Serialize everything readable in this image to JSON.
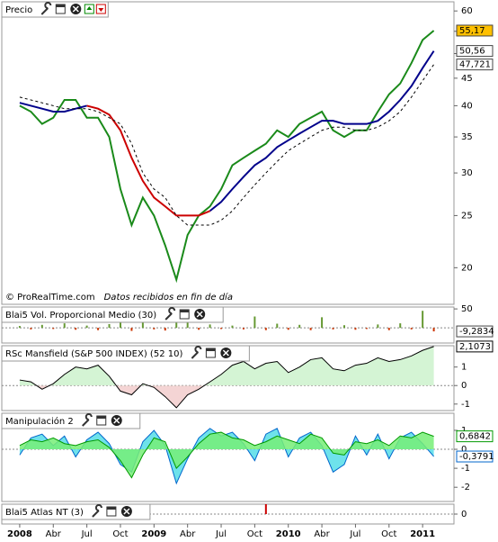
{
  "chart_data": [
    {
      "type": "price",
      "title": "Precio",
      "source": "© ProRealTime.com",
      "note": "Datos recibidos en fin de día",
      "log_scale": true,
      "x": [
        0,
        1,
        2,
        3,
        4,
        5,
        6,
        7,
        8,
        9,
        10,
        11,
        12,
        13,
        14,
        15,
        16,
        17,
        18,
        19,
        20,
        21,
        22,
        23,
        24,
        25,
        26,
        27,
        28,
        29,
        30,
        31,
        32,
        33,
        34,
        35,
        36,
        37
      ],
      "ylim": [
        17.1,
        62.4
      ],
      "yticks": [
        60,
        55,
        50,
        45,
        40,
        35,
        30,
        25,
        20
      ],
      "series": [
        {
          "type": "line",
          "color": "#1a8a1a",
          "label_fill": "#ffc000",
          "values": [
            40,
            39,
            37,
            38,
            41,
            41,
            38,
            38,
            35,
            28,
            24,
            27,
            25,
            22,
            19,
            23,
            25,
            26,
            28,
            31,
            32,
            33,
            34,
            36,
            35,
            37,
            38,
            39,
            36,
            35,
            36,
            36,
            39,
            42,
            44,
            48,
            53,
            55.17
          ],
          "value_labels": [
            null,
            null,
            null,
            null,
            null,
            null,
            null,
            null,
            null,
            null,
            null,
            null,
            null,
            null,
            null,
            null,
            null,
            null,
            null,
            null,
            null,
            null,
            null,
            null,
            null,
            null,
            null,
            null,
            null,
            null,
            null,
            null,
            null,
            null,
            null,
            null,
            null,
            "55,17"
          ]
        },
        {
          "type": "line",
          "color": "#00008b",
          "label_fill": "#ffffff",
          "values": [
            40.5,
            40,
            39.5,
            39,
            39,
            39.5,
            40,
            null,
            null,
            null,
            null,
            null,
            null,
            null,
            null,
            null,
            null,
            25.5,
            26.5,
            28,
            29.5,
            31,
            32,
            33.5,
            34.5,
            35.5,
            36.5,
            37.5,
            37.5,
            37,
            37,
            37,
            37.5,
            39,
            41,
            43.5,
            47,
            50.56
          ],
          "value_labels": [
            null,
            null,
            null,
            null,
            null,
            null,
            null,
            null,
            null,
            null,
            null,
            null,
            null,
            null,
            null,
            null,
            null,
            null,
            null,
            null,
            null,
            null,
            null,
            null,
            null,
            null,
            null,
            null,
            null,
            null,
            null,
            null,
            null,
            null,
            null,
            null,
            null,
            "50,56"
          ]
        },
        {
          "type": "line",
          "color": "#cc0000",
          "values": [
            null,
            null,
            null,
            null,
            null,
            null,
            40,
            39.5,
            38.5,
            36,
            32,
            29,
            27,
            26,
            25,
            25,
            25,
            25.5,
            null,
            null,
            null,
            null,
            null,
            null,
            null,
            null,
            null,
            null,
            null,
            null,
            null,
            null,
            null,
            null,
            null,
            null,
            null,
            null
          ]
        },
        {
          "type": "dashed",
          "color": "#000000",
          "label_fill": "#ffffff",
          "values": [
            41.5,
            41,
            40.5,
            40,
            39.5,
            39.5,
            39.5,
            39,
            38,
            37,
            34,
            30,
            28,
            27,
            25,
            24,
            24,
            24,
            24.5,
            25.5,
            27,
            28.5,
            30,
            31.5,
            33,
            34,
            35,
            36,
            36.5,
            36.5,
            36,
            36,
            36.5,
            37.5,
            39,
            41.5,
            44.5,
            47.721
          ],
          "value_labels": [
            null,
            null,
            null,
            null,
            null,
            null,
            null,
            null,
            null,
            null,
            null,
            null,
            null,
            null,
            null,
            null,
            null,
            null,
            null,
            null,
            null,
            null,
            null,
            null,
            null,
            null,
            null,
            null,
            null,
            null,
            null,
            null,
            null,
            null,
            null,
            null,
            null,
            "47,721"
          ]
        }
      ]
    },
    {
      "type": "indicator",
      "title": "Blai5 Vol. Proporcional Medio (30)",
      "ylim": [
        -40,
        55
      ],
      "yticks": [
        50
      ],
      "series": [
        {
          "type": "bar",
          "color": "#669933",
          "neg_color": "#cc3300",
          "label_fill": "#ffffff",
          "values": [
            5,
            -4,
            8,
            -3,
            12,
            -5,
            6,
            -6,
            10,
            22,
            -8,
            15,
            -4,
            -7,
            18,
            25,
            -5,
            9,
            -3,
            6,
            -4,
            30,
            -6,
            11,
            -5,
            8,
            -6,
            28,
            -4,
            7,
            -5,
            -3,
            9,
            -6,
            12,
            -4,
            45,
            -9.2834
          ],
          "value_labels": [
            null,
            null,
            null,
            null,
            null,
            null,
            null,
            null,
            null,
            null,
            null,
            null,
            null,
            null,
            null,
            null,
            null,
            null,
            null,
            null,
            null,
            null,
            null,
            null,
            null,
            null,
            null,
            null,
            null,
            null,
            null,
            null,
            null,
            null,
            null,
            null,
            null,
            "-9,2834"
          ]
        }
      ]
    },
    {
      "type": "indicator",
      "title": "RSc Mansfield (S&P 500 INDEX) (52 10)",
      "ylim": [
        -1.35,
        2.15
      ],
      "yticks": [
        1,
        0,
        -1
      ],
      "series": [
        {
          "type": "area",
          "color": "#000000",
          "fill": "#ccf2cc",
          "fill_below": "#f2cccc",
          "label_fill": "#ffffff",
          "values": [
            0.3,
            0.2,
            -0.2,
            0.1,
            0.6,
            1.0,
            0.9,
            1.1,
            0.5,
            -0.3,
            -0.5,
            0.1,
            -0.1,
            -0.6,
            -1.2,
            -0.5,
            -0.2,
            0.2,
            0.6,
            1.1,
            1.3,
            0.9,
            1.2,
            1.3,
            0.7,
            1.0,
            1.4,
            1.5,
            0.9,
            0.8,
            1.1,
            1.2,
            1.5,
            1.3,
            1.4,
            1.6,
            1.9,
            2.1073
          ],
          "value_labels": [
            null,
            null,
            null,
            null,
            null,
            null,
            null,
            null,
            null,
            null,
            null,
            null,
            null,
            null,
            null,
            null,
            null,
            null,
            null,
            null,
            null,
            null,
            null,
            null,
            null,
            null,
            null,
            null,
            null,
            null,
            null,
            null,
            null,
            null,
            null,
            null,
            null,
            "2,1073"
          ]
        }
      ]
    },
    {
      "type": "indicator",
      "title": "Manipulación 2",
      "ylim": [
        -2.75,
        1.9
      ],
      "yticks": [
        1,
        0,
        -1,
        -2
      ],
      "series": [
        {
          "type": "area",
          "color": "#0066cc",
          "fill": "#55dde8",
          "label_fill": "#ffffff",
          "values": [
            -0.3,
            0.6,
            0.8,
            0.2,
            0.7,
            -0.4,
            0.5,
            0.9,
            0.3,
            -0.8,
            -1.2,
            0.4,
            1.0,
            0.2,
            -1.8,
            -0.5,
            0.6,
            1.1,
            0.7,
            0.9,
            0.3,
            -0.6,
            0.8,
            1.1,
            -0.4,
            0.6,
            0.9,
            0.2,
            -1.2,
            -0.8,
            0.7,
            -0.3,
            0.8,
            -0.5,
            0.6,
            0.9,
            0.3,
            -0.3791
          ],
          "value_labels": [
            null,
            null,
            null,
            null,
            null,
            null,
            null,
            null,
            null,
            null,
            null,
            null,
            null,
            null,
            null,
            null,
            null,
            null,
            null,
            null,
            null,
            null,
            null,
            null,
            null,
            null,
            null,
            null,
            null,
            null,
            null,
            null,
            null,
            null,
            null,
            null,
            null,
            "-0,3791"
          ]
        },
        {
          "type": "area",
          "color": "#009900",
          "fill": "#77ee77",
          "label_fill": "#ffffff",
          "values": [
            0.2,
            0.5,
            0.4,
            0.6,
            0.3,
            0.2,
            0.4,
            0.5,
            0.1,
            -0.6,
            -1.5,
            -0.3,
            0.6,
            0.4,
            -1.0,
            -0.4,
            0.3,
            0.8,
            0.9,
            0.6,
            0.5,
            0.2,
            0.4,
            0.7,
            0.5,
            0.3,
            0.8,
            0.6,
            -0.2,
            -0.3,
            0.4,
            0.3,
            0.5,
            0.2,
            0.7,
            0.6,
            0.9,
            0.6842
          ],
          "value_labels": [
            null,
            null,
            null,
            null,
            null,
            null,
            null,
            null,
            null,
            null,
            null,
            null,
            null,
            null,
            null,
            null,
            null,
            null,
            null,
            null,
            null,
            null,
            null,
            null,
            null,
            null,
            null,
            null,
            null,
            null,
            null,
            null,
            null,
            null,
            null,
            null,
            null,
            "0,6842"
          ]
        }
      ]
    },
    {
      "type": "indicator",
      "title": "Blai5 Atlas NT (3)",
      "ylim": [
        -1,
        1
      ],
      "yticks": [
        0
      ],
      "xlim": [
        -1.6,
        38.8
      ],
      "xticks": [
        {
          "value": 0,
          "label": "2008"
        },
        {
          "value": 3,
          "label": "Abr"
        },
        {
          "value": 6,
          "label": "Jul"
        },
        {
          "value": 9,
          "label": "Oct"
        },
        {
          "value": 12,
          "label": "2009"
        },
        {
          "value": 15,
          "label": "Abr"
        },
        {
          "value": 18,
          "label": "Jul"
        },
        {
          "value": 21,
          "label": "Oct"
        },
        {
          "value": 24,
          "label": "2010"
        },
        {
          "value": 27,
          "label": "Abr"
        },
        {
          "value": 30,
          "label": "Jul"
        },
        {
          "value": 33,
          "label": "Oct"
        },
        {
          "value": 36,
          "label": "2011"
        }
      ],
      "series": [
        {
          "type": "bar",
          "color": "#cc0000",
          "neg_color": "#cc0000",
          "values": [
            0,
            0,
            0,
            0,
            0,
            0,
            0,
            0,
            0,
            0,
            0,
            0,
            0,
            0,
            0,
            0,
            0,
            0,
            0,
            0,
            0,
            0,
            1,
            0,
            0,
            0,
            0,
            0,
            0,
            0,
            0,
            0,
            0,
            0,
            0,
            0,
            0,
            0
          ]
        }
      ]
    }
  ]
}
